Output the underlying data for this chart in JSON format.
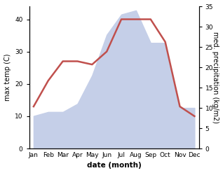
{
  "months": [
    "Jan",
    "Feb",
    "Mar",
    "Apr",
    "May",
    "Jun",
    "Jul",
    "Aug",
    "Sep",
    "Oct",
    "Nov",
    "Dec"
  ],
  "month_indices": [
    0,
    1,
    2,
    3,
    4,
    5,
    6,
    7,
    8,
    9,
    10,
    11
  ],
  "temperature": [
    13,
    21,
    27,
    27,
    26,
    30,
    40,
    40,
    40,
    33,
    13,
    10
  ],
  "precipitation": [
    8,
    9,
    9,
    11,
    18,
    28,
    33,
    34,
    26,
    26,
    10,
    10
  ],
  "temp_color": "#c0504d",
  "precip_fill_color": "#c5cfe8",
  "temp_ylim": [
    0,
    44
  ],
  "precip_ylim": [
    0,
    35
  ],
  "temp_yticks": [
    0,
    10,
    20,
    30,
    40
  ],
  "precip_yticks": [
    0,
    5,
    10,
    15,
    20,
    25,
    30,
    35
  ],
  "ylabel_left": "max temp (C)",
  "ylabel_right": "med. precipitation (kg/m2)",
  "xlabel": "date (month)",
  "line_width": 1.8,
  "tick_label_size": 6.5,
  "ylabel_size": 7,
  "xlabel_size": 7.5,
  "background_color": "#ffffff"
}
